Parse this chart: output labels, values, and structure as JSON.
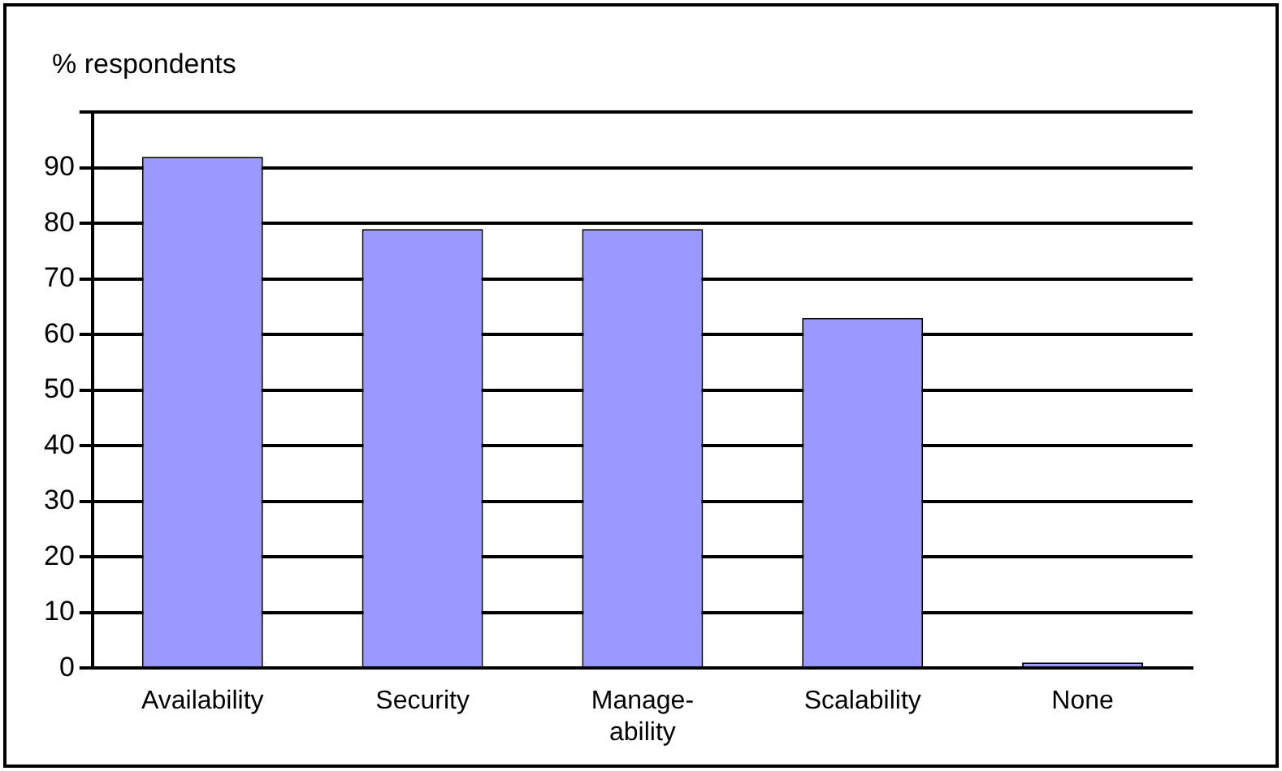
{
  "chart_data": {
    "type": "bar",
    "ylabel": "% respondents",
    "categories": [
      "Availability",
      "Security",
      "Manage-ability",
      "Scalability",
      "None"
    ],
    "values": [
      92,
      79,
      79,
      63,
      1
    ],
    "color": "#9999ff",
    "ylim": [
      0,
      100
    ],
    "yticks": [
      0,
      10,
      20,
      30,
      40,
      50,
      60,
      70,
      80,
      90,
      {
        "value": 100,
        "label": null
      }
    ],
    "grid": "y",
    "legend": false
  }
}
